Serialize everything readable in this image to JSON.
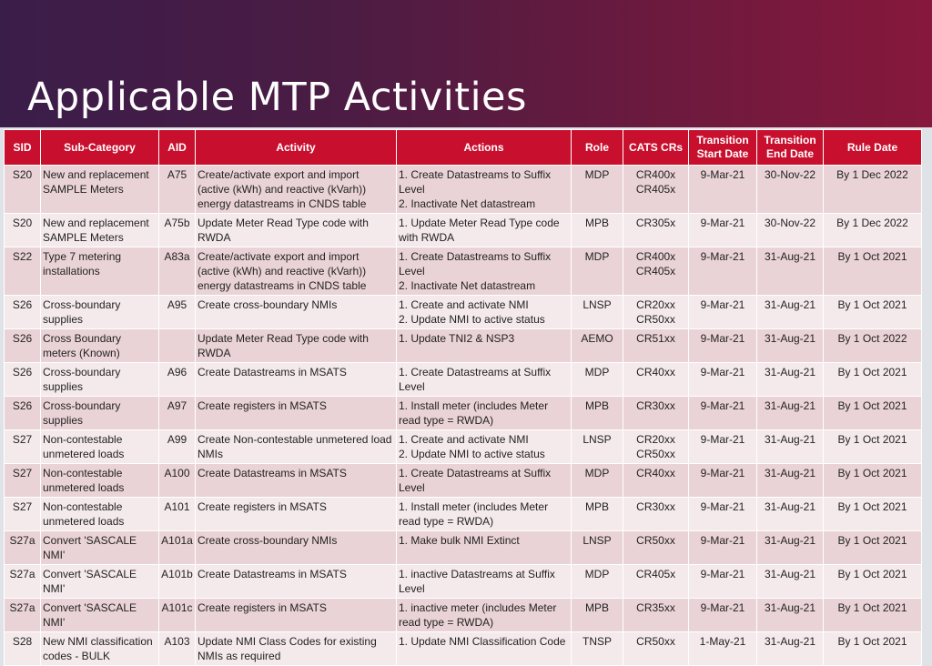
{
  "slide": {
    "title": "Applicable MTP Activities"
  },
  "table": {
    "headers": [
      "SID",
      "Sub-Category",
      "AID",
      "Activity",
      "Actions",
      "Role",
      "CATS CRs",
      "Transition Start Date",
      "Transition End Date",
      "Rule Date"
    ],
    "rows": [
      [
        "S20",
        "New and replacement SAMPLE Meters",
        "A75",
        "Create/activate export and import (active (kWh) and reactive (kVarh)) energy datastreams in CNDS table",
        "1. Create Datastreams to Suffix Level\n2. Inactivate Net datastream",
        "MDP",
        "CR400x\nCR405x",
        "9-Mar-21",
        "30-Nov-22",
        "By 1 Dec 2022"
      ],
      [
        "S20",
        "New and replacement SAMPLE Meters",
        "A75b",
        "Update Meter Read Type code with RWDA",
        "1. Update Meter Read Type code with RWDA",
        "MPB",
        "CR305x",
        "9-Mar-21",
        "30-Nov-22",
        "By 1 Dec 2022"
      ],
      [
        "S22",
        "Type 7 metering installations",
        "A83a",
        "Create/activate export and import (active (kWh) and reactive (kVarh)) energy datastreams in CNDS table",
        "1. Create Datastreams to Suffix Level\n2. Inactivate Net datastream",
        "MDP",
        "CR400x\nCR405x",
        "9-Mar-21",
        "31-Aug-21",
        "By 1 Oct 2021"
      ],
      [
        "S26",
        "Cross-boundary supplies",
        "A95",
        "Create cross-boundary NMIs",
        "1. Create and activate NMI\n2. Update NMI to active status",
        "LNSP",
        "CR20xx\nCR50xx",
        "9-Mar-21",
        "31-Aug-21",
        "By 1 Oct 2021"
      ],
      [
        "S26",
        "Cross Boundary meters (Known)",
        "",
        "Update Meter Read Type code with RWDA",
        "1. Update TNI2 & NSP3",
        "AEMO",
        "CR51xx",
        "9-Mar-21",
        "31-Aug-21",
        "By 1 Oct 2022"
      ],
      [
        "S26",
        "Cross-boundary supplies",
        "A96",
        "Create Datastreams in MSATS",
        "1. Create Datastreams at Suffix Level",
        "MDP",
        "CR40xx",
        "9-Mar-21",
        "31-Aug-21",
        "By 1 Oct 2021"
      ],
      [
        "S26",
        "Cross-boundary supplies",
        "A97",
        "Create registers in MSATS",
        "1. Install meter (includes Meter read type = RWDA)",
        "MPB",
        "CR30xx",
        "9-Mar-21",
        "31-Aug-21",
        "By 1 Oct 2021"
      ],
      [
        "S27",
        "Non-contestable unmetered loads",
        "A99",
        "Create Non-contestable unmetered load NMIs",
        "1. Create and activate NMI\n2. Update NMI to active status",
        "LNSP",
        "CR20xx\nCR50xx",
        "9-Mar-21",
        "31-Aug-21",
        "By 1 Oct 2021"
      ],
      [
        "S27",
        "Non-contestable unmetered loads",
        "A100",
        "Create Datastreams in MSATS",
        "1. Create Datastreams at Suffix Level",
        "MDP",
        "CR40xx",
        "9-Mar-21",
        "31-Aug-21",
        "By 1 Oct 2021"
      ],
      [
        "S27",
        "Non-contestable unmetered loads",
        "A101",
        "Create registers in MSATS",
        "1. Install meter (includes Meter read type = RWDA)",
        "MPB",
        "CR30xx",
        "9-Mar-21",
        "31-Aug-21",
        "By 1 Oct 2021"
      ],
      [
        "S27a",
        "Convert 'SASCALE NMI'",
        "A101a",
        "Create cross-boundary NMIs",
        "1. Make bulk NMI Extinct",
        "LNSP",
        "CR50xx",
        "9-Mar-21",
        "31-Aug-21",
        "By 1 Oct 2021"
      ],
      [
        "S27a",
        "Convert 'SASCALE NMI'",
        "A101b",
        "Create Datastreams in MSATS",
        "1. inactive Datastreams at Suffix Level",
        "MDP",
        "CR405x",
        "9-Mar-21",
        "31-Aug-21",
        "By 1 Oct 2021"
      ],
      [
        "S27a",
        "Convert 'SASCALE NMI'",
        "A101c",
        "Create registers in MSATS",
        "1. inactive meter (includes Meter read type = RWDA)",
        "MPB",
        "CR35xx",
        "9-Mar-21",
        "31-Aug-21",
        "By 1 Oct 2021"
      ],
      [
        "S28",
        "New NMI classification codes - BULK",
        "A103",
        "Update NMI Class Codes for existing NMIs as required",
        "1. Update NMI Classification Code",
        "TNSP",
        "CR50xx",
        "1-May-21",
        "31-Aug-21",
        "By 1 Oct 2021"
      ]
    ]
  }
}
